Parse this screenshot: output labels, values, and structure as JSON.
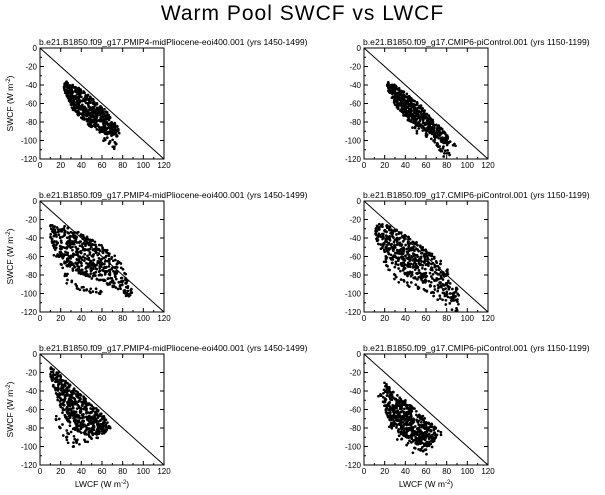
{
  "figure": {
    "title": "Warm Pool SWCF vs LWCF"
  },
  "chart_data": [
    {
      "type": "scatter",
      "title": "b.e21.B1850.f09_g17.PMIP4-midPliocene-eoi400.001 (yrs 1450-1499)",
      "xlabel": "",
      "ylabel": "SWCF",
      "ylabel_unit": "(W m",
      "ylabel_exp": "-2",
      "ylabel_close": ")",
      "xlim": [
        0,
        120
      ],
      "ylim": [
        -120,
        0
      ],
      "x_ticks": [
        0,
        20,
        40,
        60,
        80,
        100,
        120
      ],
      "y_ticks": [
        -120,
        -100,
        -80,
        -60,
        -40,
        -20,
        0
      ],
      "reference_line": "one-to-one",
      "grid": false,
      "cloud": [
        [
          22,
          -34
        ],
        [
          30,
          -38
        ],
        [
          42,
          -46
        ],
        [
          55,
          -58
        ],
        [
          66,
          -70
        ],
        [
          75,
          -85
        ],
        [
          78,
          -93
        ],
        [
          65,
          -94
        ],
        [
          52,
          -85
        ],
        [
          40,
          -76
        ],
        [
          30,
          -62
        ],
        [
          25,
          -50
        ],
        [
          22,
          -40
        ]
      ],
      "outliers": [
        [
          60,
          -92
        ],
        [
          64,
          -98
        ],
        [
          68,
          -102
        ],
        [
          71,
          -106
        ],
        [
          74,
          -104
        ],
        [
          72,
          -96
        ],
        [
          58,
          -88
        ],
        [
          48,
          -84
        ],
        [
          44,
          -80
        ],
        [
          36,
          -70
        ],
        [
          33,
          -66
        ]
      ]
    },
    {
      "type": "scatter",
      "title": "b.e21.B1850.f09_g17.CMIP6-piControl.001 (yrs 1150-1199)",
      "xlabel": "",
      "ylabel": "",
      "xlim": [
        0,
        120
      ],
      "ylim": [
        -120,
        0
      ],
      "x_ticks": [
        0,
        20,
        40,
        60,
        80,
        100,
        120
      ],
      "y_ticks": [
        -120,
        -100,
        -80,
        -60,
        -40,
        -20,
        0
      ],
      "reference_line": "one-to-one",
      "grid": false,
      "cloud": [
        [
          22,
          -36
        ],
        [
          30,
          -40
        ],
        [
          42,
          -50
        ],
        [
          55,
          -62
        ],
        [
          66,
          -76
        ],
        [
          76,
          -88
        ],
        [
          82,
          -96
        ],
        [
          82,
          -106
        ],
        [
          70,
          -98
        ],
        [
          55,
          -86
        ],
        [
          42,
          -78
        ],
        [
          30,
          -62
        ],
        [
          24,
          -48
        ],
        [
          22,
          -40
        ]
      ],
      "outliers": [
        [
          70,
          -104
        ],
        [
          74,
          -108
        ],
        [
          78,
          -112
        ],
        [
          80,
          -115
        ],
        [
          76,
          -110
        ],
        [
          66,
          -98
        ],
        [
          60,
          -94
        ],
        [
          54,
          -90
        ],
        [
          48,
          -84
        ],
        [
          86,
          -104
        ]
      ]
    },
    {
      "type": "scatter",
      "title": "b.e21.B1850.f09_g17.PMIP4-midPliocene-eoi400.001 (yrs 1450-1499)",
      "xlabel": "",
      "ylabel": "SWCF",
      "ylabel_unit": "(W m",
      "ylabel_exp": "-2",
      "ylabel_close": ")",
      "xlim": [
        0,
        120
      ],
      "ylim": [
        -120,
        0
      ],
      "x_ticks": [
        0,
        20,
        40,
        60,
        80,
        100,
        120
      ],
      "y_ticks": [
        -120,
        -100,
        -80,
        -60,
        -40,
        -20,
        0
      ],
      "reference_line": "one-to-one",
      "grid": false,
      "cloud": [
        [
          10,
          -25
        ],
        [
          18,
          -25
        ],
        [
          30,
          -30
        ],
        [
          45,
          -38
        ],
        [
          60,
          -48
        ],
        [
          72,
          -58
        ],
        [
          80,
          -70
        ],
        [
          84,
          -82
        ],
        [
          90,
          -98
        ],
        [
          88,
          -104
        ],
        [
          76,
          -96
        ],
        [
          60,
          -88
        ],
        [
          45,
          -82
        ],
        [
          32,
          -76
        ],
        [
          20,
          -64
        ],
        [
          14,
          -52
        ],
        [
          10,
          -40
        ]
      ],
      "outliers": [
        [
          26,
          -80
        ],
        [
          28,
          -88
        ],
        [
          34,
          -92
        ],
        [
          40,
          -94
        ],
        [
          46,
          -98
        ],
        [
          52,
          -96
        ],
        [
          58,
          -100
        ],
        [
          22,
          -70
        ],
        [
          16,
          -60
        ],
        [
          70,
          -90
        ],
        [
          84,
          -100
        ]
      ]
    },
    {
      "type": "scatter",
      "title": "b.e21.B1850.f09_g17.CMIP6-piControl.001 (yrs 1150-1199)",
      "xlabel": "",
      "ylabel": "",
      "xlim": [
        0,
        120
      ],
      "ylim": [
        -120,
        0
      ],
      "x_ticks": [
        0,
        20,
        40,
        60,
        80,
        100,
        120
      ],
      "y_ticks": [
        -120,
        -100,
        -80,
        -60,
        -40,
        -20,
        0
      ],
      "reference_line": "one-to-one",
      "grid": false,
      "cloud": [
        [
          10,
          -25
        ],
        [
          18,
          -24
        ],
        [
          30,
          -30
        ],
        [
          45,
          -40
        ],
        [
          60,
          -52
        ],
        [
          72,
          -62
        ],
        [
          80,
          -72
        ],
        [
          86,
          -84
        ],
        [
          92,
          -100
        ],
        [
          92,
          -112
        ],
        [
          84,
          -108
        ],
        [
          72,
          -98
        ],
        [
          56,
          -88
        ],
        [
          40,
          -80
        ],
        [
          28,
          -70
        ],
        [
          18,
          -56
        ],
        [
          12,
          -42
        ],
        [
          10,
          -32
        ]
      ],
      "outliers": [
        [
          24,
          -72
        ],
        [
          30,
          -82
        ],
        [
          36,
          -86
        ],
        [
          44,
          -90
        ],
        [
          52,
          -92
        ],
        [
          60,
          -96
        ],
        [
          66,
          -100
        ],
        [
          74,
          -104
        ],
        [
          82,
          -110
        ],
        [
          88,
          -116
        ],
        [
          20,
          -64
        ]
      ]
    },
    {
      "type": "scatter",
      "title": "b.e21.B1850.f09_g17.PMIP4-midPliocene-eoi400.001 (yrs 1450-1499)",
      "xlabel": "LWCF",
      "xlabel_unit": "(W m",
      "xlabel_exp": "-2",
      "xlabel_close": ")",
      "ylabel": "SWCF",
      "ylabel_unit": "(W m",
      "ylabel_exp": "-2",
      "ylabel_close": ")",
      "xlim": [
        0,
        120
      ],
      "ylim": [
        -120,
        0
      ],
      "x_ticks": [
        0,
        20,
        40,
        60,
        80,
        100,
        120
      ],
      "y_ticks": [
        -120,
        -100,
        -80,
        -60,
        -40,
        -20,
        0
      ],
      "reference_line": "one-to-one",
      "grid": false,
      "cloud": [
        [
          10,
          -14
        ],
        [
          18,
          -20
        ],
        [
          26,
          -30
        ],
        [
          36,
          -40
        ],
        [
          48,
          -52
        ],
        [
          58,
          -62
        ],
        [
          66,
          -72
        ],
        [
          68,
          -80
        ],
        [
          62,
          -86
        ],
        [
          50,
          -88
        ],
        [
          40,
          -86
        ],
        [
          30,
          -80
        ],
        [
          20,
          -60
        ],
        [
          14,
          -40
        ],
        [
          10,
          -24
        ]
      ],
      "outliers": [
        [
          24,
          -90
        ],
        [
          30,
          -98
        ],
        [
          34,
          -92
        ],
        [
          38,
          -96
        ],
        [
          44,
          -94
        ],
        [
          50,
          -90
        ],
        [
          56,
          -88
        ],
        [
          60,
          -84
        ],
        [
          16,
          -70
        ],
        [
          20,
          -78
        ],
        [
          28,
          -84
        ]
      ]
    },
    {
      "type": "scatter",
      "title": "b.e21.B1850.f09_g17.CMIP6-piControl.001 (yrs 1150-1199)",
      "xlabel": "LWCF",
      "xlabel_unit": "(W m",
      "xlabel_exp": "-2",
      "xlabel_close": ")",
      "ylabel": "",
      "xlim": [
        0,
        120
      ],
      "ylim": [
        -120,
        0
      ],
      "x_ticks": [
        0,
        20,
        40,
        60,
        80,
        100,
        120
      ],
      "y_ticks": [
        -120,
        -100,
        -80,
        -60,
        -40,
        -20,
        0
      ],
      "reference_line": "one-to-one",
      "grid": false,
      "cloud": [
        [
          20,
          -30
        ],
        [
          28,
          -40
        ],
        [
          40,
          -50
        ],
        [
          52,
          -62
        ],
        [
          62,
          -72
        ],
        [
          70,
          -80
        ],
        [
          70,
          -92
        ],
        [
          62,
          -100
        ],
        [
          52,
          -98
        ],
        [
          40,
          -90
        ],
        [
          30,
          -82
        ],
        [
          22,
          -66
        ],
        [
          18,
          -50
        ],
        [
          18,
          -38
        ]
      ],
      "outliers": [
        [
          50,
          -104
        ],
        [
          56,
          -102
        ],
        [
          60,
          -106
        ],
        [
          66,
          -98
        ],
        [
          72,
          -86
        ],
        [
          26,
          -78
        ],
        [
          34,
          -90
        ],
        [
          44,
          -96
        ],
        [
          48,
          -84
        ],
        [
          16,
          -46
        ]
      ]
    }
  ]
}
